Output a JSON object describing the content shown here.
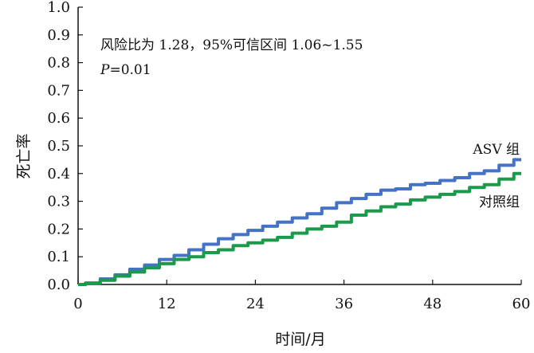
{
  "chart_data": {
    "type": "line",
    "xlabel": "时间/月",
    "ylabel": "死亡率",
    "xlim": [
      0,
      60
    ],
    "ylim": [
      0,
      1.0
    ],
    "xticks": [
      "0",
      "12",
      "24",
      "36",
      "48",
      "60"
    ],
    "yticks": [
      "0.0",
      "0.1",
      "0.2",
      "0.3",
      "0.4",
      "0.5",
      "0.6",
      "0.7",
      "0.8",
      "0.9",
      "1.0"
    ],
    "grid": false,
    "annotations": [
      "风险比为 1.28，95%可信区间 1.06~1.55",
      "P=0.01"
    ],
    "series": [
      {
        "name": "ASV 组",
        "color": "#4472c4",
        "x": [
          0,
          2,
          4,
          6,
          8,
          10,
          12,
          14,
          16,
          18,
          20,
          22,
          24,
          26,
          28,
          30,
          32,
          34,
          36,
          38,
          40,
          42,
          44,
          46,
          48,
          50,
          52,
          54,
          56,
          58,
          60
        ],
        "y": [
          0.0,
          0.005,
          0.02,
          0.035,
          0.055,
          0.07,
          0.09,
          0.105,
          0.125,
          0.145,
          0.165,
          0.18,
          0.195,
          0.21,
          0.225,
          0.24,
          0.255,
          0.275,
          0.295,
          0.31,
          0.325,
          0.34,
          0.345,
          0.36,
          0.365,
          0.375,
          0.385,
          0.4,
          0.41,
          0.43,
          0.45
        ]
      },
      {
        "name": "对照组",
        "color": "#1a9a4a",
        "x": [
          0,
          2,
          4,
          6,
          8,
          10,
          12,
          14,
          16,
          18,
          20,
          22,
          24,
          26,
          28,
          30,
          32,
          34,
          36,
          38,
          40,
          42,
          44,
          46,
          48,
          50,
          52,
          54,
          56,
          58,
          60
        ],
        "y": [
          0.0,
          0.005,
          0.015,
          0.03,
          0.045,
          0.06,
          0.075,
          0.09,
          0.1,
          0.115,
          0.125,
          0.14,
          0.15,
          0.16,
          0.17,
          0.185,
          0.2,
          0.21,
          0.225,
          0.25,
          0.265,
          0.28,
          0.29,
          0.305,
          0.315,
          0.325,
          0.335,
          0.35,
          0.36,
          0.38,
          0.4
        ]
      }
    ]
  }
}
